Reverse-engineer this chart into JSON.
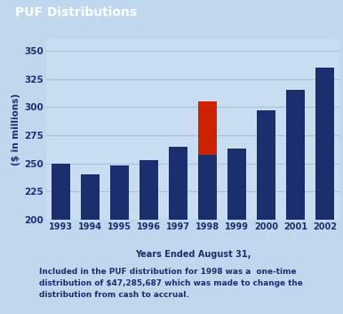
{
  "title": "PUF Distributions",
  "years": [
    "1993",
    "1994",
    "1995",
    "1996",
    "1997",
    "1998",
    "1999",
    "2000",
    "2001",
    "2002"
  ],
  "base_values": [
    250,
    240,
    248,
    253,
    265,
    258,
    263,
    297,
    315,
    335
  ],
  "red_addon": [
    0,
    0,
    0,
    0,
    0,
    47,
    0,
    0,
    0,
    0
  ],
  "bar_color": "#1b2f6e",
  "red_color": "#cc2200",
  "bg_color": "#c0d8ee",
  "plot_bg_color": "#c8ddf0",
  "title_bg_color": "#050505",
  "title_text_color": "#ffffff",
  "ylabel": "($ in millions)",
  "xlabel": "Years Ended August 31,",
  "ylim_min": 200,
  "ylim_max": 360,
  "yticks": [
    200,
    225,
    250,
    275,
    300,
    325,
    350
  ],
  "legend_line1": "Included in the PUF distribution for 1998 was a  one-time",
  "legend_line2": "distribution of $47,285,687 which was made to change the",
  "legend_line3": "distribution from cash to accrual.",
  "axis_label_color": "#1b2f6e",
  "tick_label_color": "#1b2f6e",
  "grid_color": "#aac4dc"
}
